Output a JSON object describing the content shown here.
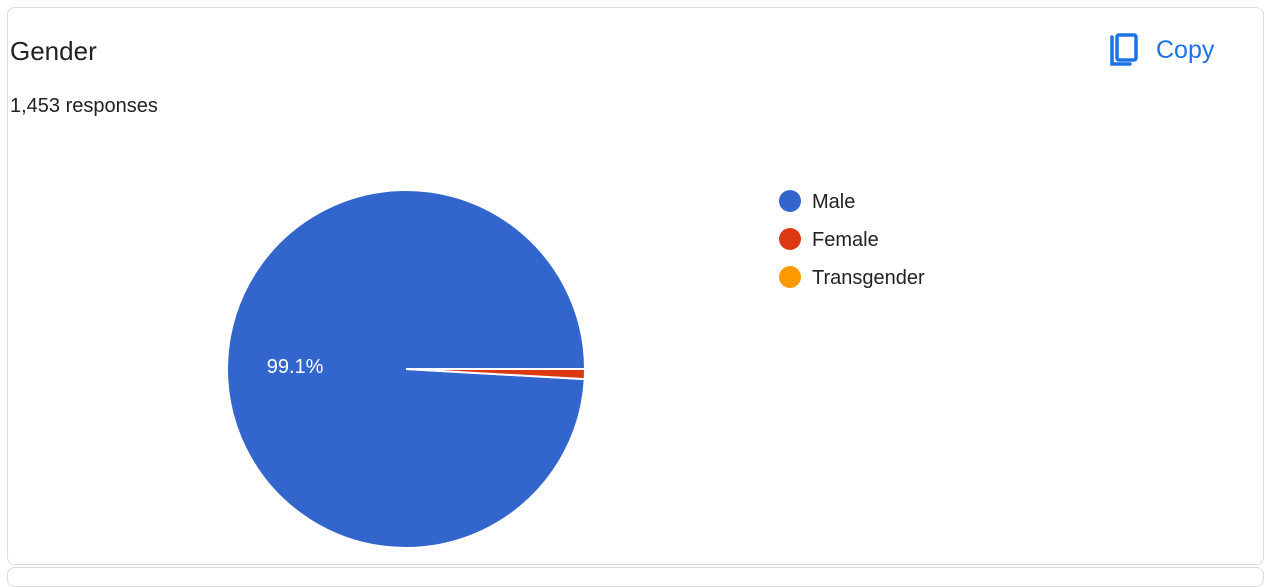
{
  "header": {
    "title": "Gender",
    "responses": "1,453 responses",
    "copy_label": "Copy"
  },
  "icons": {
    "copy": "copy-icon"
  },
  "chart_data": {
    "type": "pie",
    "categories": [
      "Male",
      "Female",
      "Transgender"
    ],
    "values": [
      99.1,
      0.9,
      0.0
    ],
    "colors": [
      "#3366cc",
      "#dc3912",
      "#ff9900"
    ],
    "slice_labels": [
      "99.1%",
      "",
      ""
    ],
    "legend_position": "right",
    "start": "right",
    "direction": "counter-clockwise"
  }
}
